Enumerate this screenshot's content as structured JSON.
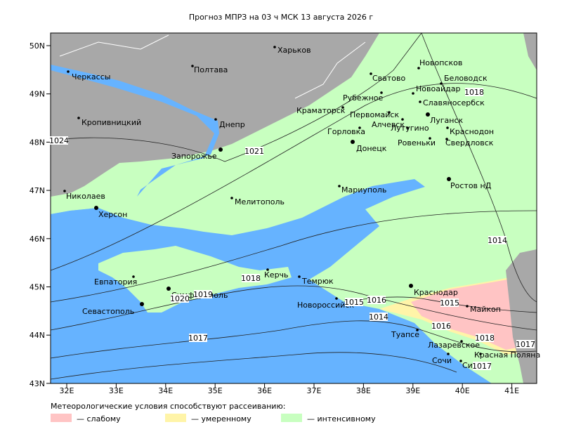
{
  "title": "Прогноз МПРЗ на 03 ч МСК 13 августа 2026 г",
  "axes": {
    "lat_labels": [
      "50N",
      "49N",
      "48N",
      "47N",
      "46N",
      "45N",
      "44N",
      "43N"
    ],
    "lon_labels": [
      "32E",
      "33E",
      "34E",
      "35E",
      "36E",
      "37E",
      "38E",
      "39E",
      "40E",
      "41E"
    ]
  },
  "cities": [
    "Харьков",
    "Черкассы",
    "Полтава",
    "Новопсков",
    "Сватово",
    "Беловодск",
    "Новоайдар",
    "Рубежное",
    "Славяносербск",
    "Кропивницкий",
    "Краматорск",
    "Первомайск",
    "Алчевск",
    "Лутугино",
    "Луганск",
    "Днепр",
    "Краснодон",
    "Горловка",
    "Ровеньки",
    "Свердловск",
    "Донецк",
    "Запорожье",
    "Мелитополь",
    "Мариуполь",
    "Ростов нД",
    "Николаев",
    "Херсон",
    "Евпатория",
    "Симферополь",
    "Севастополь",
    "Керчь",
    "Темрюк",
    "Новороссийск",
    "Краснодар",
    "Майкоп",
    "Туапсе",
    "Лазаревское",
    "Красная Поляна",
    "Сочи",
    "Сириус"
  ],
  "isobars": [
    "1024",
    "1021",
    "1018",
    "1019",
    "1020",
    "1015",
    "1016",
    "1014",
    "1017",
    "1015",
    "1016",
    "1018",
    "1017",
    "1014",
    "1018",
    "1017"
  ],
  "legend": {
    "heading": "Метеорологические условия способствуют рассеиванию:",
    "items": [
      {
        "label": "— слабому",
        "color": "#ffc4c4"
      },
      {
        "label": "— умеренному",
        "color": "#fff4a8"
      },
      {
        "label": "— интенсивному",
        "color": "#c8ffc0"
      }
    ]
  }
}
